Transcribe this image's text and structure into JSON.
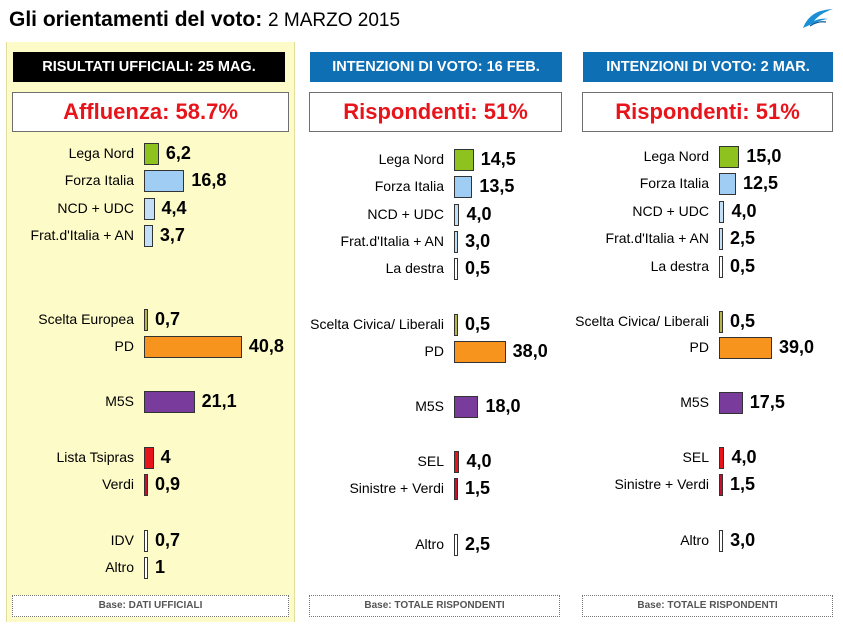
{
  "header": {
    "title": "Gli orientamenti del voto:",
    "date": "2 MARZO 2015"
  },
  "colors": {
    "Lega Nord": "#8dc21f",
    "Forza Italia": "#9fcdf4",
    "NCD + UDC": "#c3dff7",
    "Frat.d'Italia + AN": "#c3dff7",
    "La destra": "#ffffff",
    "Scelta": "#b8b54a",
    "PD": "#f7941d",
    "M5S": "#7a3c9c",
    "Lista Tsipras": "#e8141b",
    "SEL": "#e8141b",
    "Verdi": "#c8102e",
    "IDV": "#ffffff",
    "Altro": "#ffffff",
    "header_black": "#000000",
    "header_blue": "#0f6fb4",
    "stat_red": "#e8141b",
    "panel_yellow": "#fdfbc8"
  },
  "chart_data": [
    {
      "type": "bar",
      "header": "RISULTATI UFFICIALI:  25 MAG.",
      "stat": "Affluenza: 58.7%",
      "base": "Base: DATI UFFICIALI",
      "categories": [
        "Lega Nord",
        "Forza Italia",
        "NCD + UDC",
        "Frat.d'Italia + AN",
        "Scelta Europea",
        "PD",
        "M5S",
        "Lista Tsipras",
        "Verdi",
        "IDV",
        "Altro"
      ],
      "values": [
        6.2,
        16.8,
        4.4,
        3.7,
        0.7,
        40.8,
        21.1,
        4,
        0.9,
        0.7,
        1
      ],
      "labels": [
        "6,2",
        "16,8",
        "4,4",
        "3,7",
        "0,7",
        "40,8",
        "21,1",
        "4",
        "0,9",
        "0,7",
        "1"
      ]
    },
    {
      "type": "bar",
      "header": "INTENZIONI DI VOTO:  16 FEB.",
      "stat": "Rispondenti: 51%",
      "base": "Base: TOTALE RISPONDENTI",
      "categories": [
        "Lega Nord",
        "Forza Italia",
        "NCD + UDC",
        "Frat.d'Italia + AN",
        "La destra",
        "Scelta Civica/ Liberali",
        "PD",
        "M5S",
        "SEL",
        "Sinistre + Verdi",
        "Altro"
      ],
      "values": [
        14.5,
        13.5,
        4.0,
        3.0,
        0.5,
        0.5,
        38.0,
        18.0,
        4.0,
        1.5,
        2.5
      ],
      "labels": [
        "14,5",
        "13,5",
        "4,0",
        "3,0",
        "0,5",
        "0,5",
        "38,0",
        "18,0",
        "4,0",
        "1,5",
        "2,5"
      ]
    },
    {
      "type": "bar",
      "header": "INTENZIONI DI VOTO:  2 MAR.",
      "stat": "Rispondenti: 51%",
      "base": "Base: TOTALE RISPONDENTI",
      "categories": [
        "Lega Nord",
        "Forza Italia",
        "NCD + UDC",
        "Frat.d'Italia + AN",
        "La destra",
        "Scelta Civica/ Liberali",
        "PD",
        "M5S",
        "SEL",
        "Sinistre + Verdi",
        "Altro"
      ],
      "values": [
        15.0,
        12.5,
        4.0,
        2.5,
        0.5,
        0.5,
        39.0,
        17.5,
        4.0,
        1.5,
        3.0
      ],
      "labels": [
        "15,0",
        "12,5",
        "4,0",
        "2,5",
        "0,5",
        "0,5",
        "39,0",
        "17,5",
        "4,0",
        "1,5",
        "3,0"
      ]
    }
  ]
}
